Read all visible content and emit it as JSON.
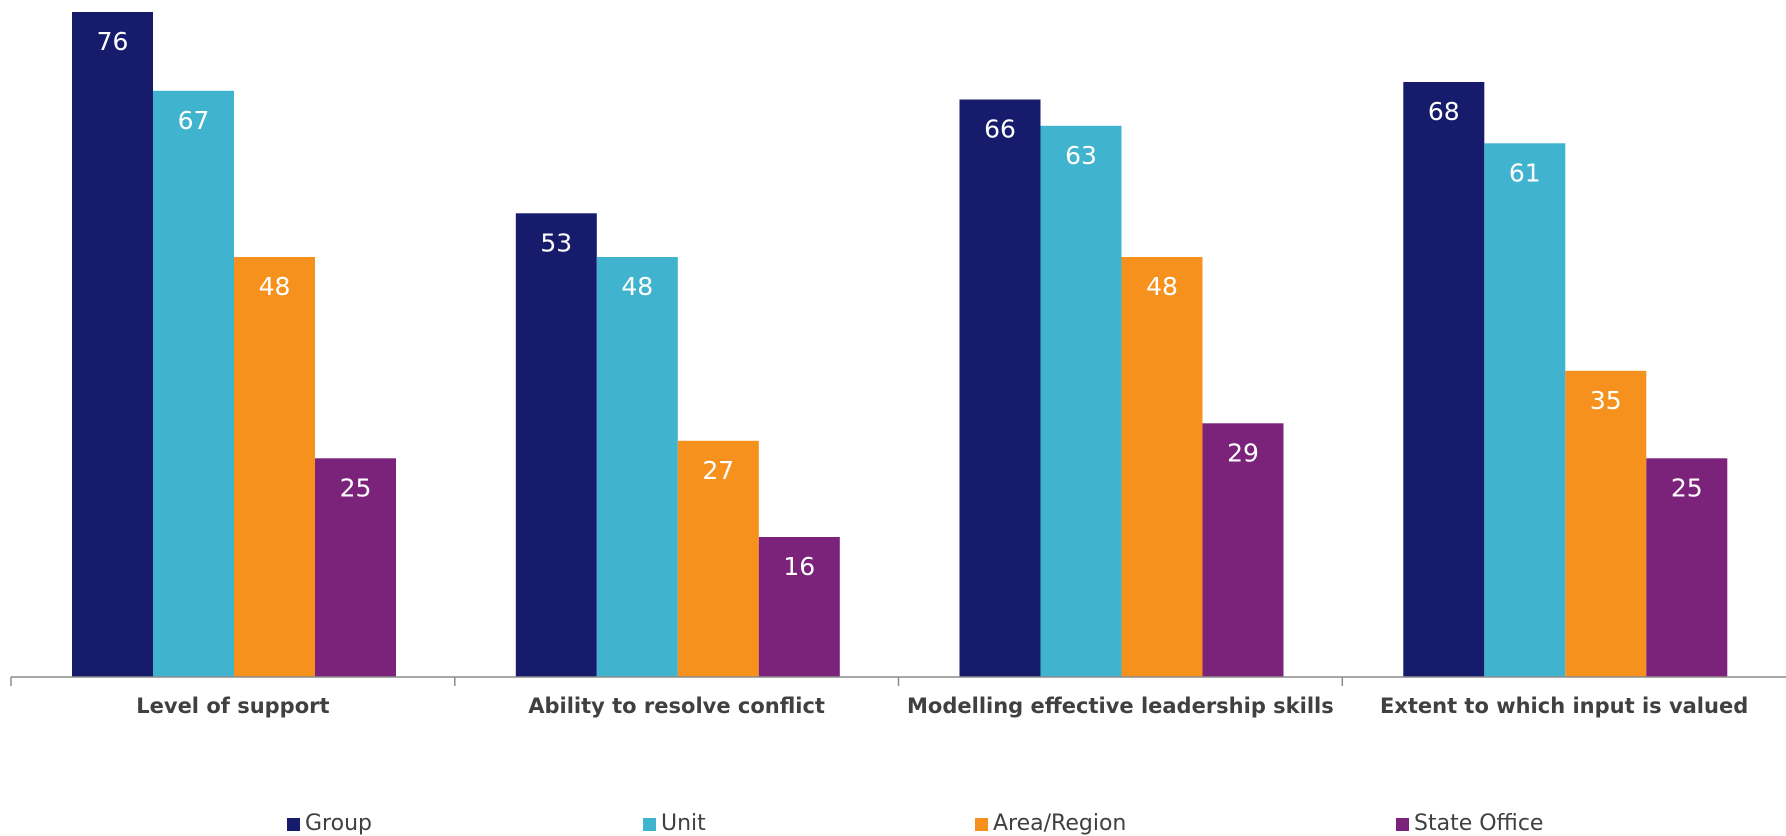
{
  "chart_data": {
    "type": "bar",
    "categories": [
      "Level of support",
      "Ability to resolve conflict",
      "Modelling effective leadership skills",
      "Extent to which input is valued"
    ],
    "series": [
      {
        "name": "Group",
        "color": "#161c6b",
        "values": [
          76,
          53,
          66,
          68
        ]
      },
      {
        "name": "Unit",
        "color": "#40b3cf",
        "values": [
          67,
          48,
          63,
          61
        ]
      },
      {
        "name": "Area/Region",
        "color": "#f6911e",
        "values": [
          48,
          27,
          48,
          35
        ]
      },
      {
        "name": "State Office",
        "color": "#7b227b",
        "values": [
          25,
          16,
          29,
          25
        ]
      }
    ],
    "ylim": [
      0,
      76
    ],
    "grid": false,
    "legend_position": "bottom",
    "data_labels": true
  }
}
